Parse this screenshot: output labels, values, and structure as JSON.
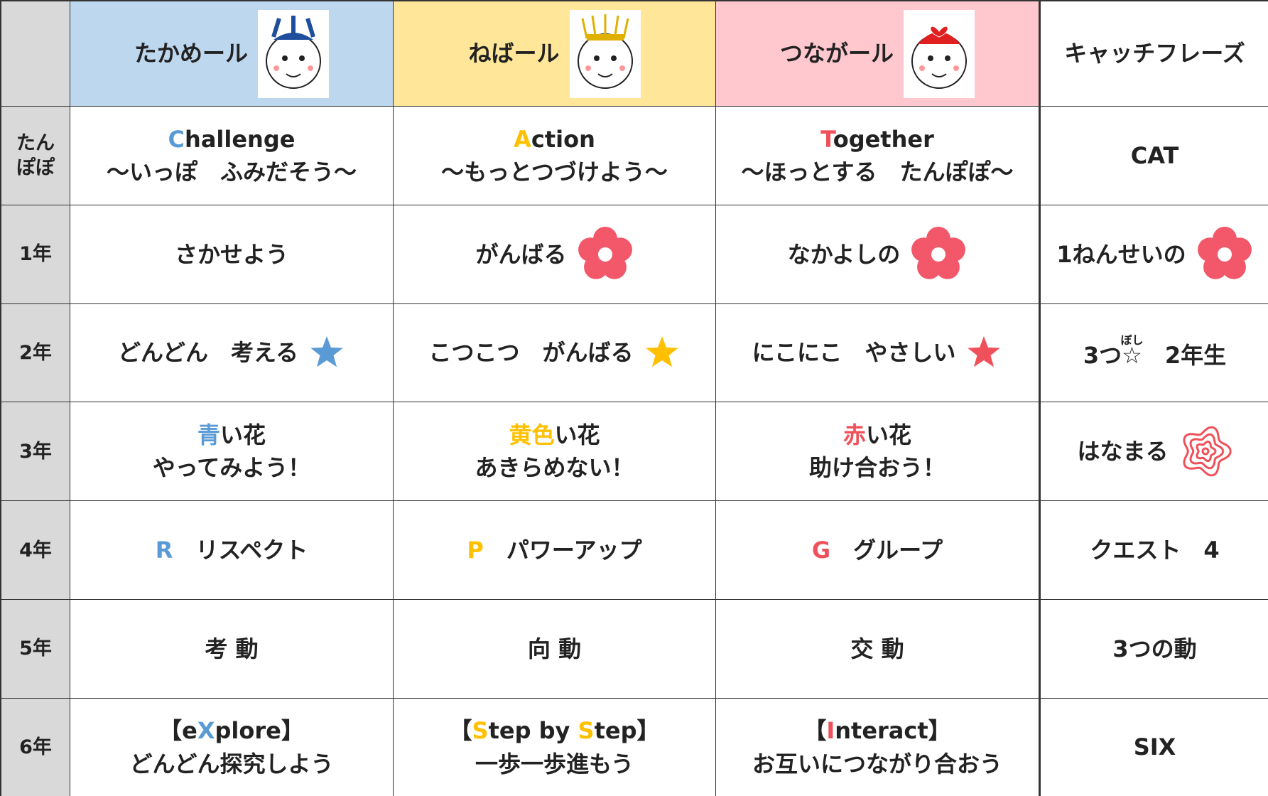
{
  "header": {
    "columns": [
      {
        "text": "たかめール",
        "bg": "#bdd7ee",
        "face": "#1f4e9c"
      },
      {
        "text": "ねばール",
        "bg": "#ffe699",
        "face": "#e0b000"
      },
      {
        "text": "つながール",
        "bg": "#ffc7ce",
        "face": "#e02020"
      },
      {
        "text": "キャッチフレーズ",
        "bg": "#ffffff"
      }
    ]
  },
  "rows": [
    {
      "label": [
        "たん",
        "ぽぽ"
      ],
      "cells": [
        {
          "lines": [
            [
              {
                "text": "C",
                "color": "#5b9bd5"
              },
              {
                "text": "hallenge"
              }
            ],
            [
              {
                "text": "～いっぽ　ふみだそう～"
              }
            ]
          ]
        },
        {
          "lines": [
            [
              {
                "text": "A",
                "color": "#ffc000"
              },
              {
                "text": "ction"
              }
            ],
            [
              {
                "text": "～もっとつづけよう～"
              }
            ]
          ]
        },
        {
          "lines": [
            [
              {
                "text": "T",
                "color": "#f0505a"
              },
              {
                "text": "ogether"
              }
            ],
            [
              {
                "text": "～ほっとする　たんぽぽ～"
              }
            ]
          ]
        },
        {
          "lines": [
            [
              {
                "text": "CAT"
              }
            ]
          ]
        }
      ]
    },
    {
      "label": [
        "1年"
      ],
      "cells": [
        {
          "lines": [
            [
              {
                "text": "さかせよう"
              }
            ]
          ]
        },
        {
          "lines": [
            [
              {
                "text": "がんばる"
              }
            ]
          ],
          "icon": "flower"
        },
        {
          "lines": [
            [
              {
                "text": "なかよしの"
              }
            ]
          ],
          "icon": "flower"
        },
        {
          "lines": [
            [
              {
                "text": "1ねんせいの"
              }
            ]
          ],
          "icon": "flower"
        }
      ]
    },
    {
      "label": [
        "2年"
      ],
      "cells": [
        {
          "lines": [
            [
              {
                "text": "どんどん　考える"
              }
            ]
          ],
          "icon": "star",
          "icon_color": "#5b9bd5"
        },
        {
          "lines": [
            [
              {
                "text": "こつこつ　がんばる"
              }
            ]
          ],
          "icon": "star",
          "icon_color": "#ffc000"
        },
        {
          "lines": [
            [
              {
                "text": "にこにこ　やさしい"
              }
            ]
          ],
          "icon": "star",
          "icon_color": "#f0505a"
        },
        {
          "lines": [
            [
              {
                "text": "3つ"
              },
              {
                "text": "☆",
                "ruby": "ぼし"
              },
              {
                "text": "　2年生"
              }
            ]
          ]
        }
      ]
    },
    {
      "label": [
        "3年"
      ],
      "cells": [
        {
          "lines": [
            [
              {
                "text": "青",
                "color": "#5b9bd5"
              },
              {
                "text": "い花"
              }
            ],
            [
              {
                "text": "やってみよう！"
              }
            ]
          ]
        },
        {
          "lines": [
            [
              {
                "text": "黄色",
                "color": "#ffc000"
              },
              {
                "text": "い花"
              }
            ],
            [
              {
                "text": "あきらめない！"
              }
            ]
          ]
        },
        {
          "lines": [
            [
              {
                "text": "赤",
                "color": "#f0505a"
              },
              {
                "text": "い花"
              }
            ],
            [
              {
                "text": "助け合おう！"
              }
            ]
          ]
        },
        {
          "lines": [
            [
              {
                "text": "はなまる"
              }
            ]
          ],
          "icon": "spiral"
        }
      ]
    },
    {
      "label": [
        "4年"
      ],
      "cells": [
        {
          "lines": [
            [
              {
                "text": "R",
                "color": "#5b9bd5"
              },
              {
                "text": "　リスペクト"
              }
            ]
          ]
        },
        {
          "lines": [
            [
              {
                "text": "P",
                "color": "#ffc000"
              },
              {
                "text": "　パワーアップ"
              }
            ]
          ]
        },
        {
          "lines": [
            [
              {
                "text": "G",
                "color": "#f0505a"
              },
              {
                "text": "　グループ"
              }
            ]
          ]
        },
        {
          "lines": [
            [
              {
                "text": "クエスト　4"
              }
            ]
          ]
        }
      ]
    },
    {
      "label": [
        "5年"
      ],
      "cells": [
        {
          "lines": [
            [
              {
                "text": "考 動"
              }
            ]
          ]
        },
        {
          "lines": [
            [
              {
                "text": "向 動"
              }
            ]
          ]
        },
        {
          "lines": [
            [
              {
                "text": "交 動"
              }
            ]
          ]
        },
        {
          "lines": [
            [
              {
                "text": "3つの動"
              }
            ]
          ]
        }
      ]
    },
    {
      "label": [
        "6年"
      ],
      "cells": [
        {
          "lines": [
            [
              {
                "text": "【e"
              },
              {
                "text": "X",
                "color": "#5b9bd5"
              },
              {
                "text": "plore】"
              }
            ],
            [
              {
                "text": "どんどん探究しよう"
              }
            ]
          ]
        },
        {
          "lines": [
            [
              {
                "text": "【"
              },
              {
                "text": "S",
                "color": "#ffc000"
              },
              {
                "text": "tep by "
              },
              {
                "text": "S",
                "color": "#ffc000"
              },
              {
                "text": "tep】"
              }
            ],
            [
              {
                "text": "一歩一歩進もう"
              }
            ]
          ]
        },
        {
          "lines": [
            [
              {
                "text": "【"
              },
              {
                "text": "I",
                "color": "#f0505a"
              },
              {
                "text": "nteract】"
              }
            ],
            [
              {
                "text": "お互いにつながり合おう"
              }
            ]
          ]
        },
        {
          "lines": [
            [
              {
                "text": "SIX"
              }
            ]
          ]
        }
      ]
    }
  ]
}
